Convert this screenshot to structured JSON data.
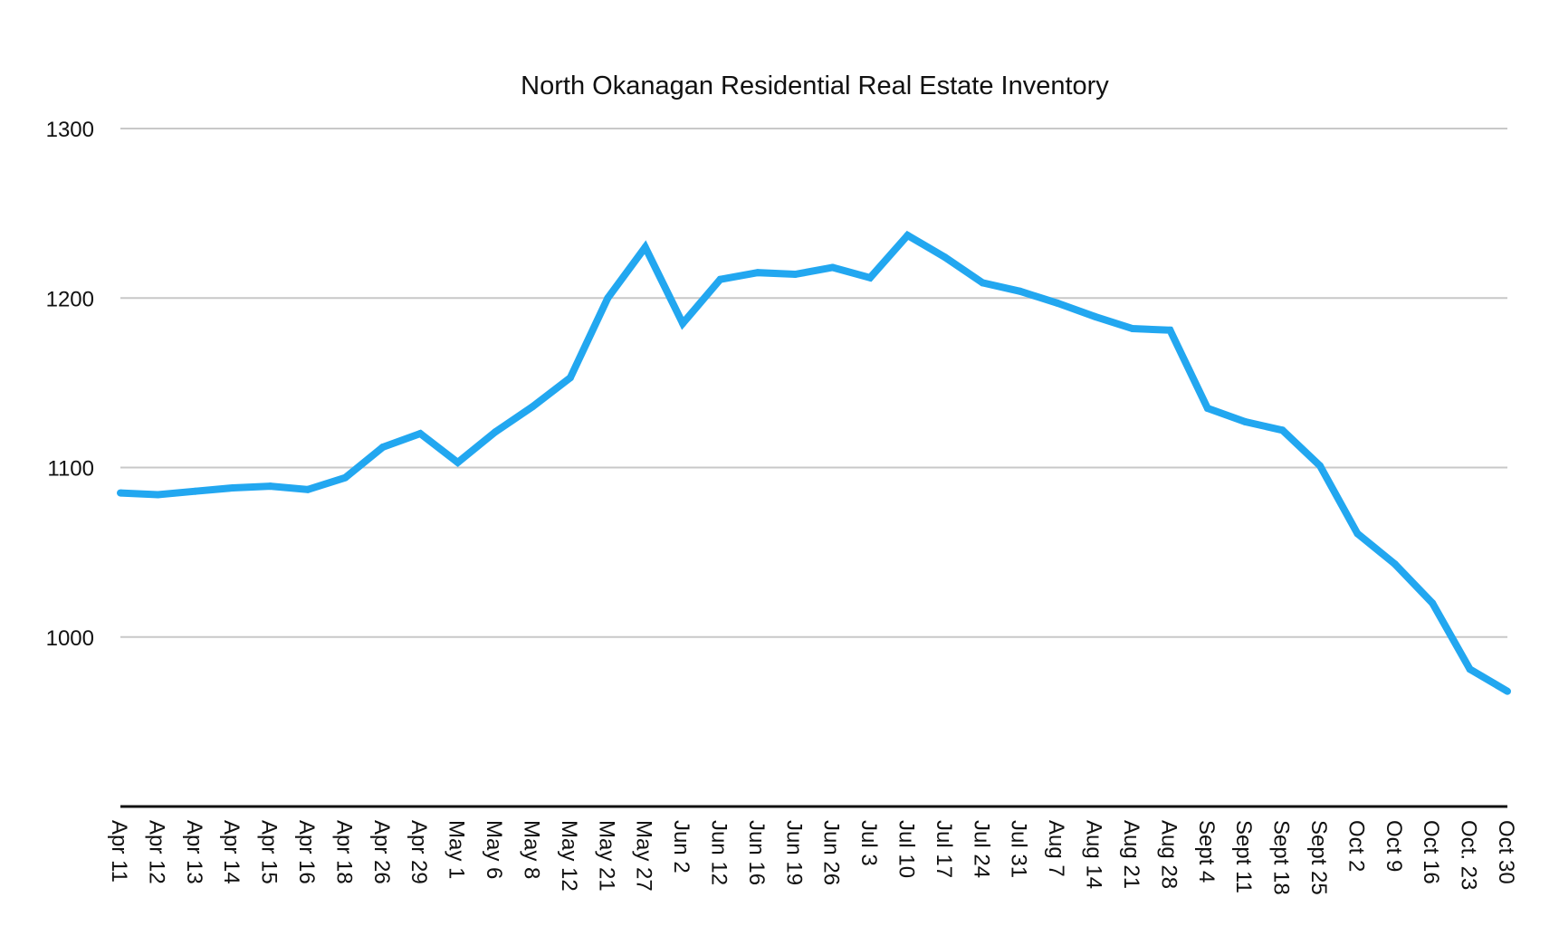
{
  "chart_data": {
    "type": "line",
    "title": "North Okanagan Residential Real Estate Inventory",
    "xlabel": "",
    "ylabel": "",
    "ylim": [
      900,
      1300
    ],
    "yticks": [
      1000,
      1100,
      1200,
      1300
    ],
    "grid": true,
    "categories": [
      "Apr 11",
      "Apr 12",
      "Apr 13",
      "Apr 14",
      "Apr 15",
      "Apr 16",
      "Apr 18",
      "Apr 26",
      "Apr 29",
      "May 1",
      "May 6",
      "May 8",
      "May 12",
      "May 21",
      "May 27",
      "Jun 2",
      "Jun 12",
      "Jun 16",
      "Jun 19",
      "Jun 26",
      "Jul 3",
      "Jul 10",
      "Jul 17",
      "Jul 24",
      "Jul 31",
      "Aug 7",
      "Aug 14",
      "Aug 21",
      "Aug 28",
      "Sept 4",
      "Sept 11",
      "Sept 18",
      "Sept 25",
      "Oct 2",
      "Oct 9",
      "Oct 16",
      "Oct. 23",
      "Oct 30"
    ],
    "series": [
      {
        "color": "#22a7f0",
        "values": [
          1085,
          1084,
          1086,
          1088,
          1089,
          1087,
          1094,
          1112,
          1120,
          1103,
          1121,
          1136,
          1153,
          1200,
          1230,
          1185,
          1211,
          1215,
          1214,
          1218,
          1212,
          1237,
          1224,
          1209,
          1204,
          1197,
          1189,
          1182,
          1181,
          1135,
          1127,
          1122,
          1101,
          1061,
          1043,
          1020,
          981,
          968
        ]
      }
    ]
  }
}
